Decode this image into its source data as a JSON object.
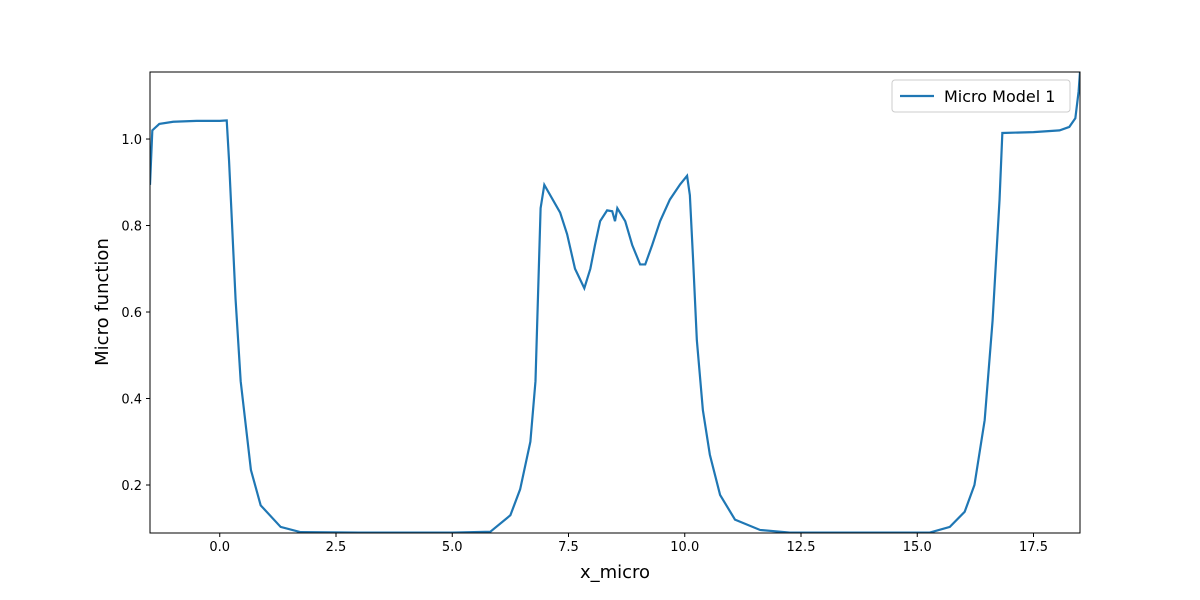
{
  "chart_data": {
    "type": "line",
    "x_label": "x_micro",
    "y_label": "Micro function",
    "xlim": [
      -1.5,
      18.5
    ],
    "ylim": [
      0.089,
      1.155
    ],
    "xticks": [
      {
        "value": 0,
        "label": "0.0"
      },
      2.5,
      {
        "value": 5,
        "label": "5.0"
      },
      7.5,
      {
        "value": 10,
        "label": "10.0"
      },
      12.5,
      {
        "value": 15,
        "label": "15.0"
      },
      17.5
    ],
    "yticks": [
      0.2,
      0.4,
      0.6,
      0.8,
      {
        "value": 1,
        "label": "1.0"
      }
    ],
    "legend": "upper right",
    "x": [
      -1.5,
      -1.45,
      -1.3,
      -1.0,
      -0.5,
      0.0,
      0.15,
      0.2,
      0.34,
      0.45,
      0.67,
      0.88,
      1.31,
      1.74,
      3.0,
      5.0,
      5.82,
      6.25,
      6.46,
      6.68,
      6.79,
      6.9,
      6.98,
      7.32,
      7.47,
      7.64,
      7.84,
      7.97,
      8.07,
      8.18,
      8.33,
      8.44,
      8.5,
      8.55,
      8.72,
      8.87,
      9.04,
      9.15,
      9.3,
      9.47,
      9.68,
      9.9,
      10.05,
      10.11,
      10.18,
      10.26,
      10.39,
      10.54,
      10.76,
      11.08,
      11.62,
      12.26,
      15.27,
      15.7,
      16.02,
      16.23,
      16.45,
      16.62,
      16.77,
      16.83,
      17.5,
      18.06,
      18.27,
      18.4,
      18.47,
      18.5
    ],
    "series": [
      {
        "name": "Micro Model 1",
        "color": "#1f77b4",
        "values": [
          0.894,
          1.02,
          1.035,
          1.04,
          1.042,
          1.042,
          1.043,
          0.95,
          0.63,
          0.44,
          0.235,
          0.153,
          0.103,
          0.091,
          0.09,
          0.09,
          0.092,
          0.13,
          0.19,
          0.3,
          0.44,
          0.84,
          0.894,
          0.83,
          0.78,
          0.7,
          0.655,
          0.7,
          0.755,
          0.81,
          0.835,
          0.833,
          0.81,
          0.84,
          0.81,
          0.755,
          0.71,
          0.71,
          0.755,
          0.81,
          0.86,
          0.895,
          0.915,
          0.87,
          0.72,
          0.535,
          0.373,
          0.27,
          0.177,
          0.12,
          0.096,
          0.09,
          0.09,
          0.103,
          0.138,
          0.2,
          0.35,
          0.58,
          0.86,
          1.014,
          1.016,
          1.02,
          1.028,
          1.048,
          1.11,
          1.155
        ]
      }
    ]
  }
}
